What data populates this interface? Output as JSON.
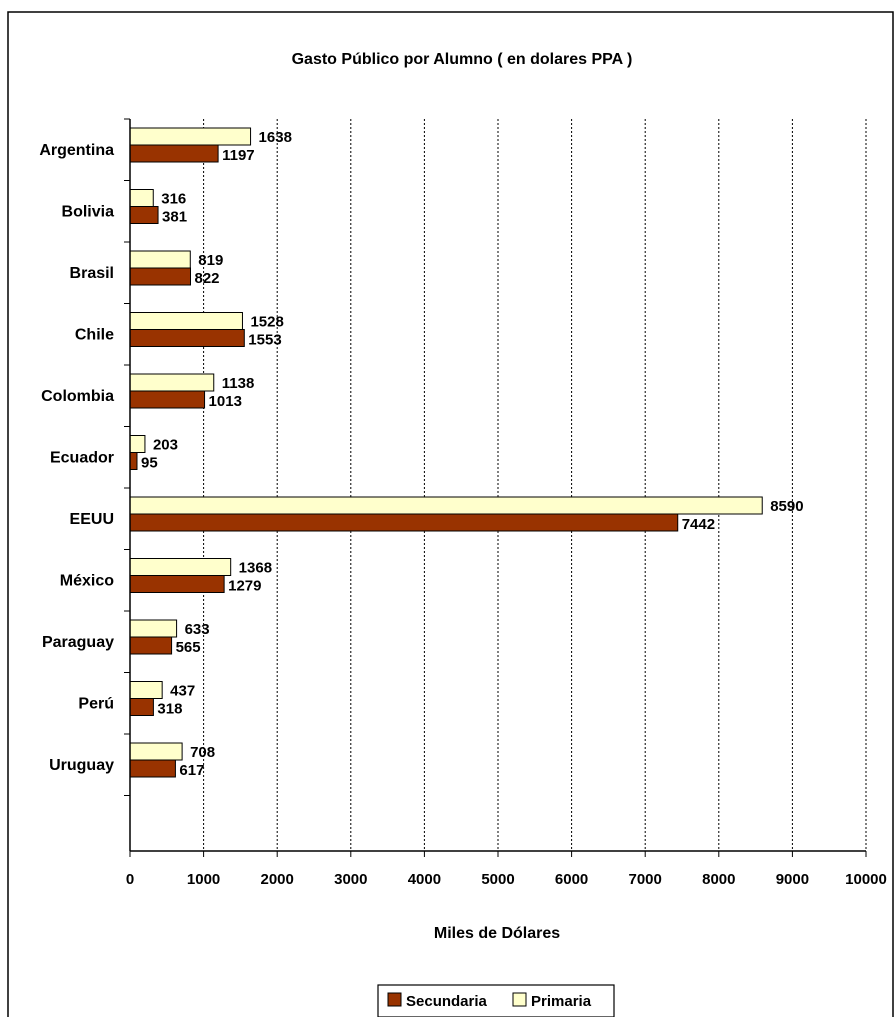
{
  "chart_data": {
    "type": "bar",
    "orientation": "horizontal",
    "title": "Gasto Público por Alumno ( en dolares PPA )",
    "xlabel": "Miles de Dólares",
    "ylabel": "",
    "xlim": [
      0,
      10000
    ],
    "x_ticks": [
      0,
      1000,
      2000,
      3000,
      4000,
      5000,
      6000,
      7000,
      8000,
      9000,
      10000
    ],
    "grid": "vertical dashed",
    "legend_position": "bottom",
    "categories": [
      "Argentina",
      "Bolivia",
      "Brasil",
      "Chile",
      "Colombia",
      "Ecuador",
      "EEUU",
      "México",
      "Paraguay",
      "Perú",
      "Uruguay"
    ],
    "series": [
      {
        "name": "Secundaria",
        "color": "#993300",
        "values": [
          1197,
          381,
          822,
          1553,
          1013,
          95,
          7442,
          1279,
          565,
          318,
          617
        ]
      },
      {
        "name": "Primaria",
        "color": "#FFFFCC",
        "values": [
          1638,
          316,
          819,
          1528,
          1138,
          203,
          8590,
          1368,
          633,
          437,
          708
        ]
      }
    ],
    "legend": [
      "Secundaria",
      "Primaria"
    ]
  }
}
